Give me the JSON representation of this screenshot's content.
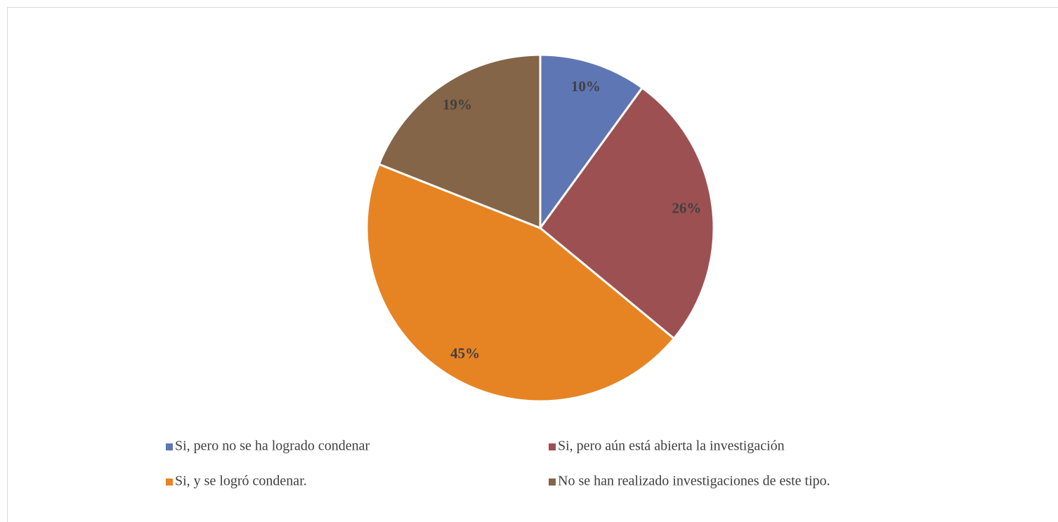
{
  "chart_data": {
    "type": "pie",
    "categories": [
      "Si, pero no se ha logrado condenar",
      "Si, pero aún está abierta la investigación",
      "Si, y se logró condenar.",
      "No se han realizado investigaciones de este tipo."
    ],
    "values": [
      10,
      26,
      45,
      19
    ],
    "value_labels": [
      "10%",
      "26%",
      "45%",
      "19%"
    ],
    "colors": [
      "#5f76b5",
      "#9c5052",
      "#e68423",
      "#846548"
    ]
  }
}
